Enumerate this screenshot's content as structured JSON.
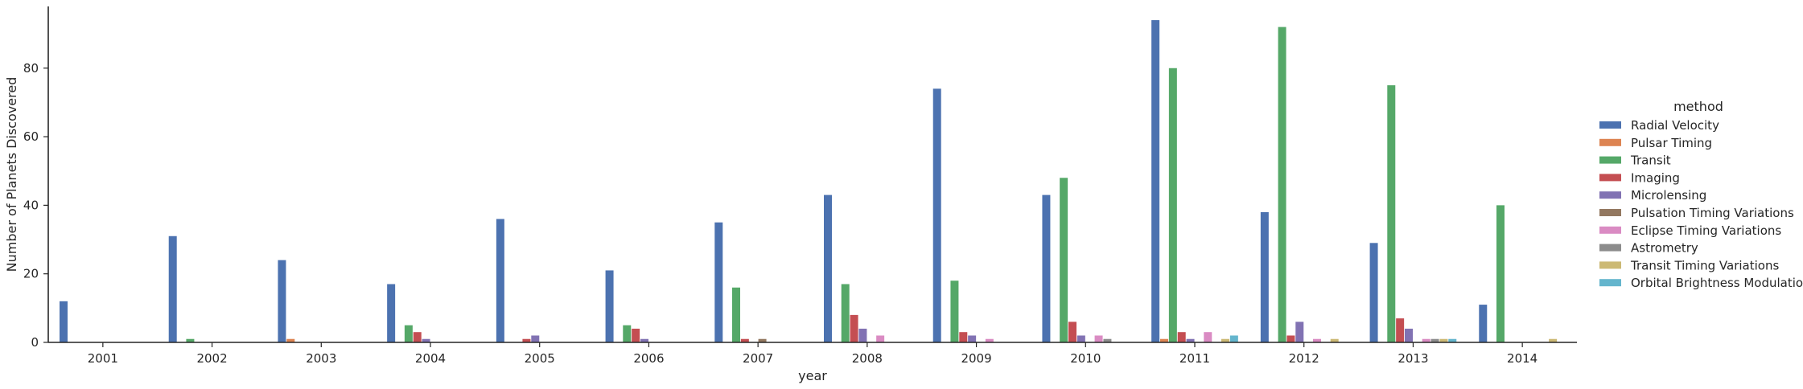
{
  "chart_data": {
    "type": "bar",
    "title": "",
    "xlabel": "year",
    "ylabel": "Number of Planets Discovered",
    "ylim": [
      0,
      98
    ],
    "yticks": [
      0,
      20,
      40,
      60,
      80
    ],
    "grid": false,
    "legend": {
      "title": "method",
      "placement": "right"
    },
    "categories": [
      "2001",
      "2002",
      "2003",
      "2004",
      "2005",
      "2006",
      "2007",
      "2008",
      "2009",
      "2010",
      "2011",
      "2012",
      "2013",
      "2014"
    ],
    "series": [
      {
        "name": "Radial Velocity",
        "color": "#4c72b0",
        "values": [
          12,
          31,
          24,
          17,
          36,
          21,
          35,
          43,
          74,
          43,
          94,
          38,
          29,
          11
        ]
      },
      {
        "name": "Pulsar Timing",
        "color": "#dd8452",
        "values": [
          0,
          0,
          1,
          0,
          0,
          0,
          0,
          0,
          0,
          0,
          1,
          0,
          0,
          0
        ]
      },
      {
        "name": "Transit",
        "color": "#55a868",
        "values": [
          0,
          1,
          0,
          5,
          0,
          5,
          16,
          17,
          18,
          48,
          80,
          92,
          75,
          40
        ]
      },
      {
        "name": "Imaging",
        "color": "#c44e52",
        "values": [
          0,
          0,
          0,
          3,
          1,
          4,
          1,
          8,
          3,
          6,
          3,
          2,
          7,
          0
        ]
      },
      {
        "name": "Microlensing",
        "color": "#8172b3",
        "values": [
          0,
          0,
          0,
          1,
          2,
          1,
          0,
          4,
          2,
          2,
          1,
          6,
          4,
          0
        ]
      },
      {
        "name": "Pulsation Timing Variations",
        "color": "#937860",
        "values": [
          0,
          0,
          0,
          0,
          0,
          0,
          1,
          0,
          0,
          0,
          0,
          0,
          0,
          0
        ]
      },
      {
        "name": "Eclipse Timing Variations",
        "color": "#da8bc3",
        "values": [
          0,
          0,
          0,
          0,
          0,
          0,
          0,
          2,
          1,
          2,
          3,
          1,
          1,
          0
        ]
      },
      {
        "name": "Astrometry",
        "color": "#8c8c8c",
        "values": [
          0,
          0,
          0,
          0,
          0,
          0,
          0,
          0,
          0,
          1,
          0,
          0,
          1,
          0
        ]
      },
      {
        "name": "Transit Timing Variations",
        "color": "#ccb974",
        "values": [
          0,
          0,
          0,
          0,
          0,
          0,
          0,
          0,
          0,
          0,
          1,
          1,
          1,
          1
        ]
      },
      {
        "name": "Orbital Brightness Modulation",
        "color": "#64b5cd",
        "values": [
          0,
          0,
          0,
          0,
          0,
          0,
          0,
          0,
          0,
          0,
          2,
          0,
          1,
          0
        ]
      }
    ]
  }
}
